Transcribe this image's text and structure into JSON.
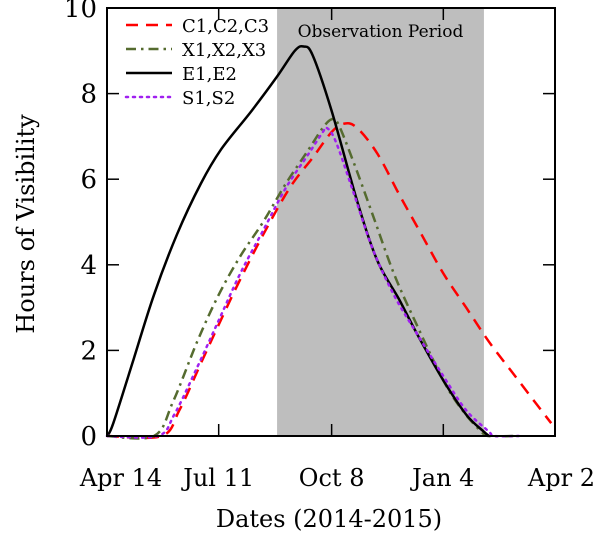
{
  "chart_data": {
    "type": "line",
    "xlabel": "Dates (2014-2015)",
    "ylabel": "Hours of Visibility",
    "xlim": [
      "2014-04-14",
      "2015-04-02"
    ],
    "ylim": [
      0,
      10
    ],
    "x_ticks": [
      {
        "date": "2014-04-14",
        "label": "Apr 14"
      },
      {
        "date": "2014-07-11",
        "label": "Jul 11"
      },
      {
        "date": "2014-10-08",
        "label": "Oct 8"
      },
      {
        "date": "2015-01-04",
        "label": "Jan 4"
      },
      {
        "date": "2015-04-02",
        "label": "Apr 2"
      }
    ],
    "y_ticks": [
      0,
      2,
      4,
      6,
      8,
      10
    ],
    "shaded_region": {
      "label": "Observation Period",
      "start": "2014-08-26",
      "end": "2015-02-05",
      "color": "#bebebe"
    },
    "legend_position": "top-left",
    "series": [
      {
        "name": "C1,C2,C3",
        "color": "#ff0000",
        "style": "dashed",
        "points": [
          [
            "2014-04-14",
            0
          ],
          [
            "2014-05-27",
            0
          ],
          [
            "2014-06-10",
            0.6
          ],
          [
            "2014-06-27",
            1.7
          ],
          [
            "2014-07-11",
            2.6
          ],
          [
            "2014-07-27",
            3.6
          ],
          [
            "2014-08-15",
            4.7
          ],
          [
            "2014-09-05",
            5.8
          ],
          [
            "2014-09-23",
            6.5
          ],
          [
            "2014-10-08",
            7.1
          ],
          [
            "2014-10-18",
            7.3
          ],
          [
            "2014-10-28",
            7.2
          ],
          [
            "2014-11-13",
            6.6
          ],
          [
            "2014-12-01",
            5.6
          ],
          [
            "2014-12-18",
            4.7
          ],
          [
            "2015-01-04",
            3.8
          ],
          [
            "2015-01-22",
            3.0
          ],
          [
            "2015-02-09",
            2.2
          ],
          [
            "2015-02-27",
            1.5
          ],
          [
            "2015-03-17",
            0.8
          ],
          [
            "2015-03-30",
            0.3
          ]
        ]
      },
      {
        "name": "X1,X2,X3",
        "color": "#556b2f",
        "style": "dashdot",
        "points": [
          [
            "2014-04-14",
            0
          ],
          [
            "2014-05-21",
            0
          ],
          [
            "2014-06-05",
            0.8
          ],
          [
            "2014-06-24",
            2.2
          ],
          [
            "2014-07-11",
            3.3
          ],
          [
            "2014-07-28",
            4.2
          ],
          [
            "2014-08-15",
            5.0
          ],
          [
            "2014-09-02",
            5.9
          ],
          [
            "2014-09-20",
            6.7
          ],
          [
            "2014-10-01",
            7.2
          ],
          [
            "2014-10-08",
            7.4
          ],
          [
            "2014-10-13",
            7.3
          ],
          [
            "2014-10-24",
            6.5
          ],
          [
            "2014-11-09",
            5.2
          ],
          [
            "2014-11-26",
            3.8
          ],
          [
            "2014-12-14",
            2.6
          ],
          [
            "2015-01-04",
            1.3
          ],
          [
            "2015-01-19",
            0.6
          ],
          [
            "2015-02-03",
            0.1
          ],
          [
            "2015-02-09",
            0
          ],
          [
            "2015-03-03",
            0
          ]
        ]
      },
      {
        "name": "E1,E2",
        "color": "#000000",
        "style": "solid",
        "points": [
          [
            "2014-04-14",
            0
          ],
          [
            "2014-04-19",
            0.3
          ],
          [
            "2014-05-05",
            1.8
          ],
          [
            "2014-05-21",
            3.3
          ],
          [
            "2014-06-08",
            4.7
          ],
          [
            "2014-06-27",
            5.9
          ],
          [
            "2014-07-13",
            6.7
          ],
          [
            "2014-08-06",
            7.6
          ],
          [
            "2014-08-26",
            8.4
          ],
          [
            "2014-09-09",
            9.0
          ],
          [
            "2014-09-16",
            9.1
          ],
          [
            "2014-09-23",
            8.9
          ],
          [
            "2014-10-08",
            7.6
          ],
          [
            "2014-10-28",
            5.5
          ],
          [
            "2014-11-13",
            4.1
          ],
          [
            "2014-11-30",
            3.2
          ],
          [
            "2014-12-14",
            2.4
          ],
          [
            "2015-01-04",
            1.3
          ],
          [
            "2015-01-22",
            0.5
          ],
          [
            "2015-02-05",
            0.1
          ],
          [
            "2015-02-09",
            0
          ]
        ]
      },
      {
        "name": "S1,S2",
        "color": "#a020f0",
        "style": "dotted",
        "points": [
          [
            "2014-04-14",
            0
          ],
          [
            "2014-05-24",
            0
          ],
          [
            "2014-06-06",
            0.5
          ],
          [
            "2014-06-24",
            1.6
          ],
          [
            "2014-07-11",
            2.7
          ],
          [
            "2014-07-28",
            3.8
          ],
          [
            "2014-08-15",
            4.8
          ],
          [
            "2014-09-02",
            5.8
          ],
          [
            "2014-09-20",
            6.6
          ],
          [
            "2014-10-01",
            7.1
          ],
          [
            "2014-10-04",
            7.2
          ],
          [
            "2014-10-11",
            6.9
          ],
          [
            "2014-10-24",
            5.8
          ],
          [
            "2014-11-09",
            4.4
          ],
          [
            "2014-11-26",
            3.3
          ],
          [
            "2014-12-14",
            2.4
          ],
          [
            "2015-01-04",
            1.4
          ],
          [
            "2015-01-22",
            0.6
          ],
          [
            "2015-02-09",
            0.1
          ],
          [
            "2015-02-13",
            0
          ],
          [
            "2015-03-05",
            0
          ]
        ]
      }
    ]
  }
}
